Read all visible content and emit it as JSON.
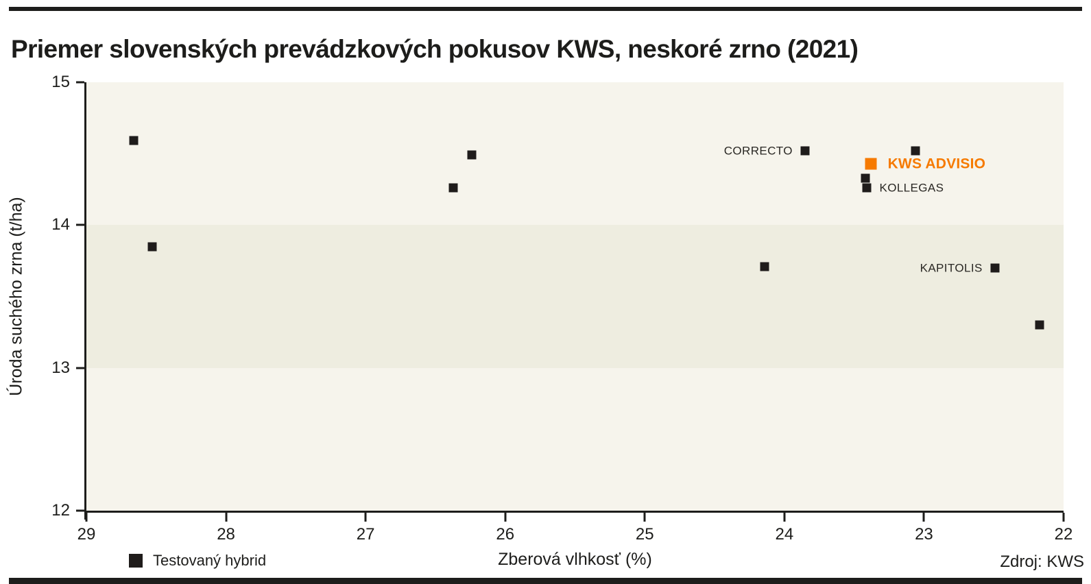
{
  "header": {
    "title": "Priemer slovenských prevádzkových pokusov KWS, neskoré zrno (2021)"
  },
  "colors": {
    "ink": "#1d1d1b",
    "marker_black": "#1f1c1b",
    "accent_orange": "#f67a00",
    "band_light": "#f6f4ec",
    "band_dark": "#eeede0"
  },
  "chart_data": {
    "type": "scatter",
    "title": "Priemer slovenských prevádzkových pokusov KWS, neskoré zrno (2021)",
    "xlabel": "Zberová vlhkosť (%)",
    "ylabel": "Úroda suchého zrna (t/ha)",
    "x_axis_reversed": true,
    "xlim": [
      29,
      22
    ],
    "ylim": [
      12,
      15
    ],
    "x_ticks": [
      29,
      28,
      27,
      26,
      25,
      24,
      23,
      22
    ],
    "y_ticks": [
      15,
      14,
      13,
      12
    ],
    "grid": false,
    "legend_position": "bottom-left",
    "source": "Zdroj: KWS",
    "background_bands": [
      {
        "from": 14,
        "to": 15,
        "color": "#f6f4ec"
      },
      {
        "from": 13,
        "to": 14,
        "color": "#eeede0"
      },
      {
        "from": 12,
        "to": 13,
        "color": "#f6f4ec"
      }
    ],
    "legend": [
      {
        "label": "Testovaný hybrid",
        "marker": "square",
        "color": "#1f1c1b"
      }
    ],
    "series": [
      {
        "name": "Testovaný hybrid",
        "marker": "square",
        "color": "#1f1c1b",
        "marker_size": 13,
        "points": [
          {
            "x": 28.66,
            "y": 14.59
          },
          {
            "x": 28.53,
            "y": 13.85
          },
          {
            "x": 26.24,
            "y": 14.49
          },
          {
            "x": 26.37,
            "y": 14.26
          },
          {
            "x": 24.14,
            "y": 13.71
          },
          {
            "x": 23.85,
            "y": 14.52,
            "label": "CORRECTO",
            "label_side": "left"
          },
          {
            "x": 23.06,
            "y": 14.52
          },
          {
            "x": 23.42,
            "y": 14.33
          },
          {
            "x": 23.41,
            "y": 14.26,
            "label": "KOLLEGAS",
            "label_side": "right"
          },
          {
            "x": 22.49,
            "y": 13.7,
            "label": "KAPITOLIS",
            "label_side": "left"
          },
          {
            "x": 22.17,
            "y": 13.3
          }
        ]
      },
      {
        "name": "KWS ADVISIO",
        "marker": "square",
        "color": "#f67a00",
        "marker_size": 17,
        "highlight": true,
        "points": [
          {
            "x": 23.38,
            "y": 14.43,
            "label": "KWS ADVISIO",
            "label_side": "right"
          }
        ]
      }
    ]
  }
}
